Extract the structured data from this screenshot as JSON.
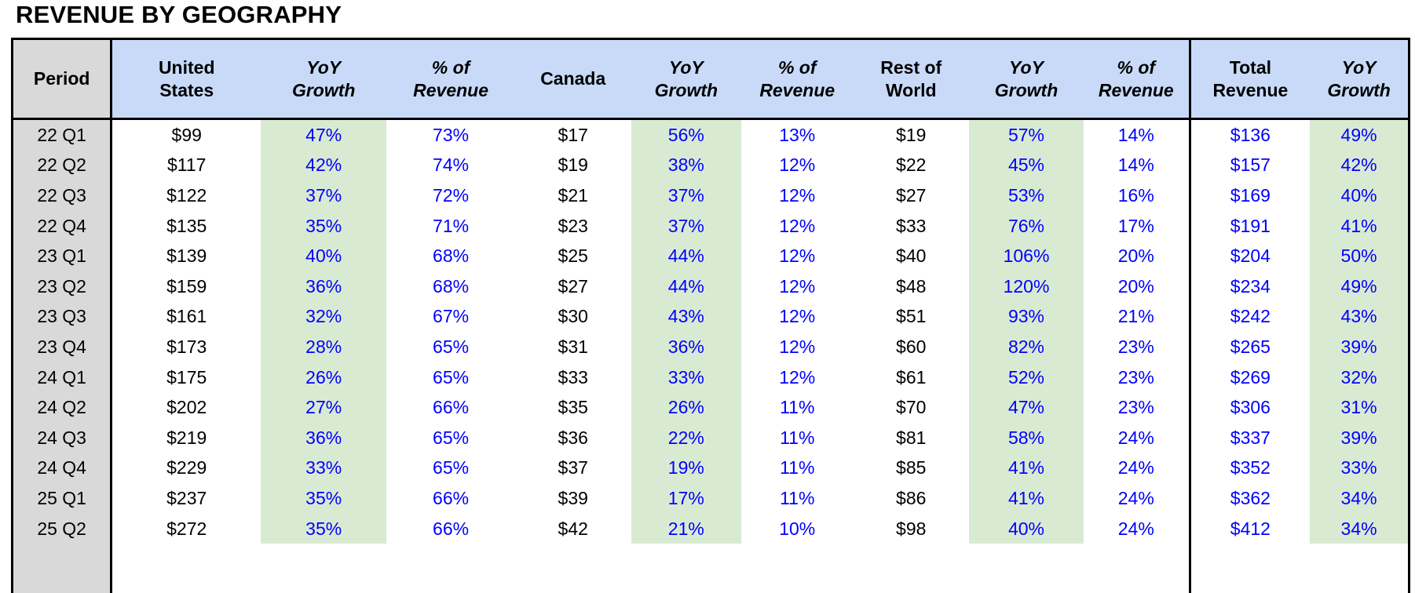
{
  "title": "REVENUE BY GEOGRAPHY",
  "colors": {
    "header_bg": "#c9daf8",
    "period_bg": "#d9d9d9",
    "yoy_bg": "#d9ead3",
    "blue_text": "#0000ff",
    "black_text": "#000000",
    "border": "#000000"
  },
  "table": {
    "headers": [
      {
        "label": "Period"
      },
      {
        "label": "United\nStates"
      },
      {
        "label": "YoY\nGrowth"
      },
      {
        "label": "% of\nRevenue"
      },
      {
        "label": "Canada"
      },
      {
        "label": "YoY\nGrowth"
      },
      {
        "label": "% of\nRevenue"
      },
      {
        "label": "Rest of\nWorld"
      },
      {
        "label": "YoY\nGrowth"
      },
      {
        "label": "% of\nRevenue"
      },
      {
        "label": "Total\nRevenue"
      },
      {
        "label": "YoY\nGrowth"
      }
    ]
  },
  "chart_data": {
    "type": "table",
    "title": "REVENUE BY GEOGRAPHY",
    "columns": [
      "Period",
      "United States",
      "YoY Growth",
      "% of Revenue",
      "Canada",
      "YoY Growth",
      "% of Revenue",
      "Rest of World",
      "YoY Growth",
      "% of Revenue",
      "Total Revenue",
      "YoY Growth"
    ],
    "rows": [
      [
        "22 Q1",
        "$99",
        "47%",
        "73%",
        "$17",
        "56%",
        "13%",
        "$19",
        "57%",
        "14%",
        "$136",
        "49%"
      ],
      [
        "22 Q2",
        "$117",
        "42%",
        "74%",
        "$19",
        "38%",
        "12%",
        "$22",
        "45%",
        "14%",
        "$157",
        "42%"
      ],
      [
        "22 Q3",
        "$122",
        "37%",
        "72%",
        "$21",
        "37%",
        "12%",
        "$27",
        "53%",
        "16%",
        "$169",
        "40%"
      ],
      [
        "22 Q4",
        "$135",
        "35%",
        "71%",
        "$23",
        "37%",
        "12%",
        "$33",
        "76%",
        "17%",
        "$191",
        "41%"
      ],
      [
        "23 Q1",
        "$139",
        "40%",
        "68%",
        "$25",
        "44%",
        "12%",
        "$40",
        "106%",
        "20%",
        "$204",
        "50%"
      ],
      [
        "23 Q2",
        "$159",
        "36%",
        "68%",
        "$27",
        "44%",
        "12%",
        "$48",
        "120%",
        "20%",
        "$234",
        "49%"
      ],
      [
        "23 Q3",
        "$161",
        "32%",
        "67%",
        "$30",
        "43%",
        "12%",
        "$51",
        "93%",
        "21%",
        "$242",
        "43%"
      ],
      [
        "23 Q4",
        "$173",
        "28%",
        "65%",
        "$31",
        "36%",
        "12%",
        "$60",
        "82%",
        "23%",
        "$265",
        "39%"
      ],
      [
        "24 Q1",
        "$175",
        "26%",
        "65%",
        "$33",
        "33%",
        "12%",
        "$61",
        "52%",
        "23%",
        "$269",
        "32%"
      ],
      [
        "24 Q2",
        "$202",
        "27%",
        "66%",
        "$35",
        "26%",
        "11%",
        "$70",
        "47%",
        "23%",
        "$306",
        "31%"
      ],
      [
        "24 Q3",
        "$219",
        "36%",
        "65%",
        "$36",
        "22%",
        "11%",
        "$81",
        "58%",
        "24%",
        "$337",
        "39%"
      ],
      [
        "24 Q4",
        "$229",
        "33%",
        "65%",
        "$37",
        "19%",
        "11%",
        "$85",
        "41%",
        "24%",
        "$352",
        "33%"
      ],
      [
        "25 Q1",
        "$237",
        "35%",
        "66%",
        "$39",
        "17%",
        "11%",
        "$86",
        "41%",
        "24%",
        "$362",
        "34%"
      ],
      [
        "25 Q2",
        "$272",
        "35%",
        "66%",
        "$42",
        "21%",
        "10%",
        "$98",
        "40%",
        "24%",
        "$412",
        "34%"
      ]
    ]
  }
}
